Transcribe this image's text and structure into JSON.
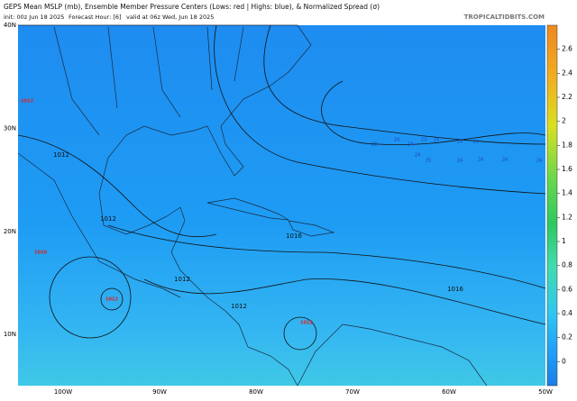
{
  "header": {
    "title": "GEPS Mean MSLP (mb), Ensemble Member Pressure Centers (Lows: red | Highs: blue), & Normalized Spread (σ)",
    "init": "init: 00z Jun 18 2025",
    "forecast_hour": "Forecast Hour: [6]",
    "valid": "valid at 06z Wed, Jun 18 2025",
    "site": "TROPICALTIDBITS.COM"
  },
  "map": {
    "lat_labels": [
      "40N",
      "30N",
      "20N",
      "10N"
    ],
    "lon_labels": [
      "100W",
      "90W",
      "80W",
      "70W",
      "60W",
      "50W"
    ],
    "isobar_labels": [
      "1012",
      "1012",
      "1012",
      "1012",
      "1016",
      "1016"
    ],
    "high_centers": [
      "23",
      "24",
      "24",
      "23",
      "24",
      "24",
      "23",
      "24",
      "25",
      "24",
      "24",
      "24",
      "24"
    ],
    "low_centers": [
      "1012",
      "1012",
      "1012",
      "1010"
    ]
  },
  "colorbar": {
    "lim": [
      -0.2,
      2.8
    ],
    "ticks": [
      0,
      0.2,
      0.4,
      0.6,
      0.8,
      1,
      1.2,
      1.4,
      1.6,
      1.8,
      2,
      2.2,
      2.4,
      2.6
    ]
  }
}
